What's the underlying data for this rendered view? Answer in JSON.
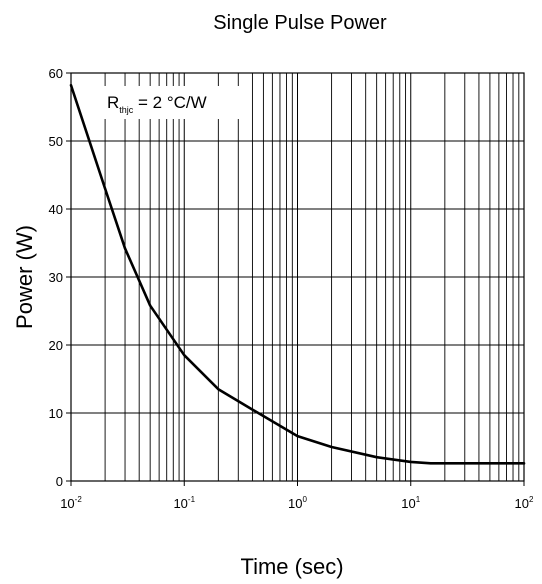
{
  "chart_data": {
    "type": "line",
    "title": "Single Pulse Power",
    "xlabel": "Time (sec)",
    "ylabel": "Power (W)",
    "x_scale": "log",
    "xlim": [
      0.01,
      100
    ],
    "ylim": [
      0,
      60
    ],
    "x_ticks": [
      {
        "value": 0.01,
        "base": "10",
        "exp": "-2"
      },
      {
        "value": 0.1,
        "base": "10",
        "exp": "-1"
      },
      {
        "value": 1,
        "base": "10",
        "exp": "0"
      },
      {
        "value": 10,
        "base": "10",
        "exp": "1"
      },
      {
        "value": 100,
        "base": "10",
        "exp": "2"
      }
    ],
    "y_ticks": [
      0,
      10,
      20,
      30,
      40,
      50,
      60
    ],
    "grid": true,
    "annotation": {
      "symbol": "R",
      "subscript": "thjc",
      "text": " = 2 °C/W"
    },
    "series": [
      {
        "x": [
          0.01,
          0.02,
          0.03,
          0.05,
          0.1,
          0.2,
          0.4,
          1,
          2,
          5,
          10,
          15,
          20,
          50,
          100
        ],
        "y": [
          58.2,
          43,
          34.2,
          25.8,
          18.5,
          13.5,
          10.5,
          6.6,
          5,
          3.5,
          2.8,
          2.6,
          2.6,
          2.6,
          2.6
        ]
      }
    ],
    "colors": {
      "line": "#000000",
      "grid": "#000000",
      "background": "#ffffff"
    }
  }
}
